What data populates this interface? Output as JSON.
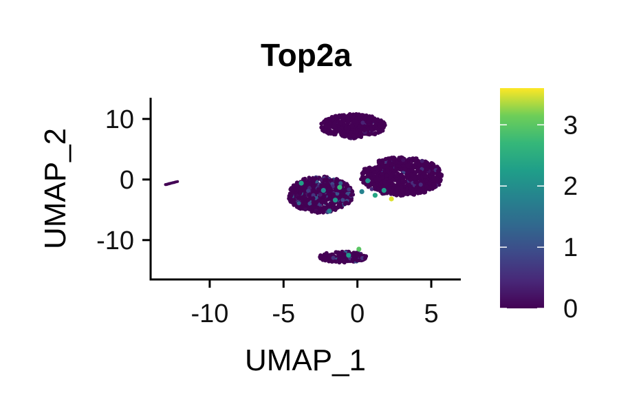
{
  "chart_data": {
    "type": "scatter",
    "title": "Top2a",
    "xlabel": "UMAP_1",
    "ylabel": "UMAP_2",
    "xlim": [
      -14,
      7
    ],
    "ylim": [
      -16.5,
      13.5
    ],
    "xticks": [
      -10,
      -5,
      0,
      5
    ],
    "xtick_labels": [
      "-10",
      "-5",
      "0",
      "5"
    ],
    "yticks": [
      -10,
      0,
      10
    ],
    "ytick_labels": [
      "-10",
      "0",
      "10"
    ],
    "grid": false,
    "legend": "right",
    "colorscale": "viridis",
    "colorbar": {
      "min": 0,
      "max": 3.6,
      "ticks": [
        0,
        1,
        2,
        3
      ],
      "tick_labels": [
        "0",
        "1",
        "2",
        "3"
      ]
    },
    "clusters": [
      {
        "label": "top",
        "center": [
          -0.3,
          8.8
        ],
        "spread": [
          2.2,
          2.0
        ],
        "expression": "low"
      },
      {
        "label": "right",
        "center": [
          3.0,
          0.5
        ],
        "spread": [
          2.8,
          3.2
        ],
        "expression": "low"
      },
      {
        "label": "left",
        "center": [
          -2.5,
          -2.5
        ],
        "spread": [
          2.2,
          3.0
        ],
        "expression": "mixed"
      },
      {
        "label": "bottom",
        "center": [
          -1.0,
          -12.8
        ],
        "spread": [
          1.6,
          0.9
        ],
        "expression": "mixed"
      },
      {
        "label": "far-left",
        "center": [
          -12.6,
          -0.6
        ],
        "spread": [
          0.4,
          0.3
        ],
        "expression": "low"
      }
    ],
    "highlighted_points": [
      {
        "x": 0.1,
        "y": -11.5,
        "value": 3.0
      },
      {
        "x": -1.2,
        "y": -1.3,
        "value": 2.7
      },
      {
        "x": 1.2,
        "y": -2.6,
        "value": 2.4
      },
      {
        "x": 2.3,
        "y": -3.2,
        "value": 3.5
      },
      {
        "x": -1.5,
        "y": -3.4,
        "value": 2.1
      },
      {
        "x": -3.8,
        "y": -0.6,
        "value": 2.3
      },
      {
        "x": -0.6,
        "y": -12.5,
        "value": 2.2
      },
      {
        "x": 0.7,
        "y": -0.2,
        "value": 2.0
      },
      {
        "x": -2.3,
        "y": -1.8,
        "value": 1.9
      },
      {
        "x": 1.8,
        "y": -1.8,
        "value": 2.2
      },
      {
        "x": 0.3,
        "y": -2.0,
        "value": 1.8
      },
      {
        "x": -1.9,
        "y": -5.2,
        "value": 1.7
      }
    ]
  }
}
